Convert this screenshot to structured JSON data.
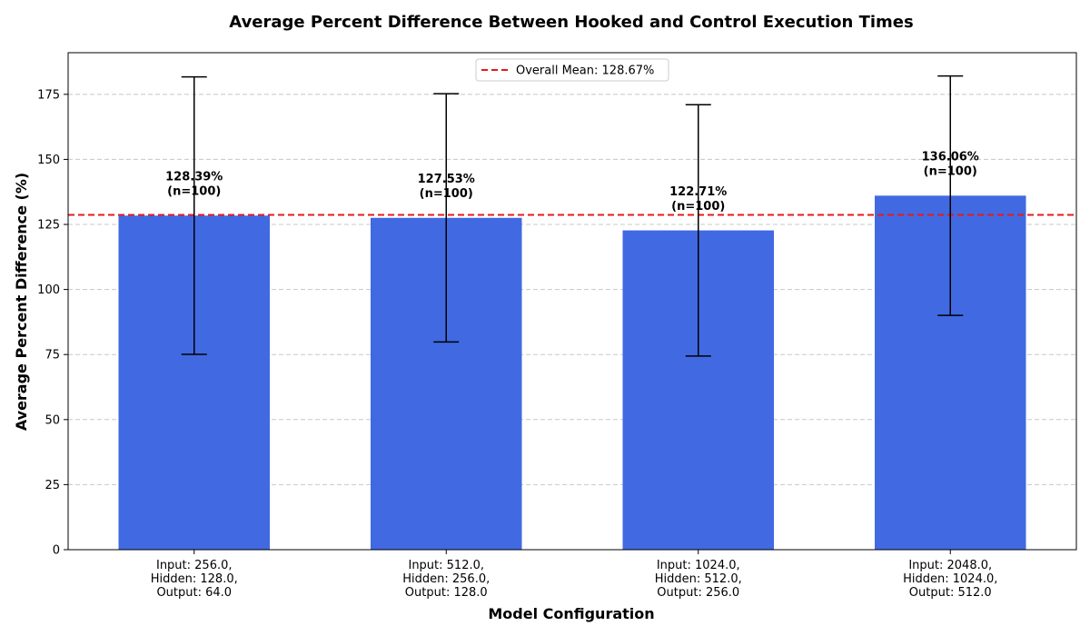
{
  "chart_data": {
    "type": "bar",
    "title": "Average Percent Difference Between Hooked and Control Execution Times",
    "xlabel": "Model Configuration",
    "ylabel": "Average Percent Difference (%)",
    "categories": [
      [
        "Input: 256.0,",
        "Hidden: 128.0,",
        "Output: 64.0"
      ],
      [
        "Input: 512.0,",
        "Hidden: 256.0,",
        "Output: 128.0"
      ],
      [
        "Input: 1024.0,",
        "Hidden: 512.0,",
        "Output: 256.0"
      ],
      [
        "Input: 2048.0,",
        "Hidden: 1024.0,",
        "Output: 512.0"
      ]
    ],
    "values": [
      128.39,
      127.53,
      122.71,
      136.06
    ],
    "errors": [
      53.3,
      47.7,
      48.3,
      46.0
    ],
    "n": [
      100,
      100,
      100,
      100
    ],
    "bar_labels": [
      [
        "128.39%",
        "(n=100)"
      ],
      [
        "127.53%",
        "(n=100)"
      ],
      [
        "122.71%",
        "(n=100)"
      ],
      [
        "136.06%",
        "(n=100)"
      ]
    ],
    "ylim": [
      0,
      191
    ],
    "yticks": [
      0,
      25,
      50,
      75,
      100,
      125,
      150,
      175
    ],
    "grid": true,
    "mean_line": {
      "value": 128.67,
      "label": "Overall Mean: 128.67%"
    },
    "legend_position": "top-center",
    "colors": {
      "bar": "#4169e1",
      "mean_line": "#e31a1c",
      "error_bar": "#000000",
      "grid": "#c8c8c8"
    }
  }
}
